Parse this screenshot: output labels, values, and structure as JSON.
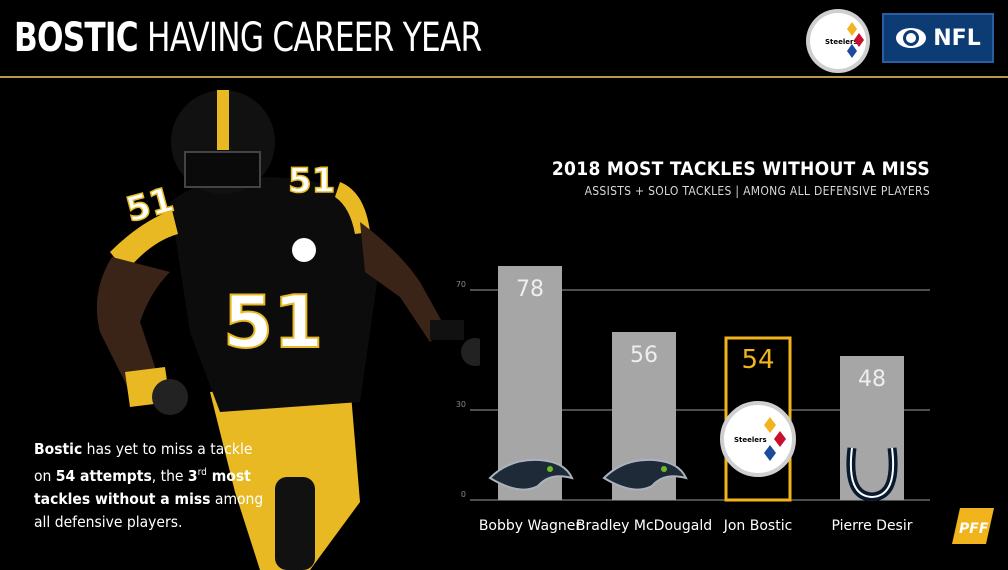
{
  "header": {
    "title_bold": "BOSTIC",
    "title_rest": " HAVING CAREER YEAR",
    "steelers_logo_text": "Steelers",
    "network_text": "NFL",
    "accent_color": "#b89a45"
  },
  "caption": {
    "part1": "Bostic",
    "part2": " has yet to miss a tackle on ",
    "part3": "54 attempts",
    "part4": ", the ",
    "part5": "3",
    "part6": "rd",
    "part7": " most tackles without a miss",
    "part8": " among all defensive players."
  },
  "chart_data": {
    "type": "bar",
    "title": "2018 MOST TACKLES WITHOUT A MISS",
    "subtitle": "ASSISTS + SOLO TACKLES | AMONG ALL DEFENSIVE PLAYERS",
    "categories": [
      "Bobby Wagner",
      "Bradley McDougald",
      "Jon Bostic",
      "Pierre Desir"
    ],
    "values": [
      78,
      56,
      54,
      48
    ],
    "value_labels": [
      "78",
      "56",
      "54",
      "48"
    ],
    "team_icons": [
      "seahawks-icon",
      "seahawks-icon",
      "steelers-icon",
      "colts-icon"
    ],
    "highlight_index": 2,
    "yticks": [
      0,
      30,
      70
    ],
    "ylim": [
      0,
      100
    ],
    "grid": true,
    "colors": {
      "bar": "#a6a6a6",
      "highlight_border": "#f2b41c",
      "highlight_fill": "#000000",
      "value_text": "#eeeeee"
    }
  },
  "player": {
    "jersey_number": "51"
  },
  "branding": {
    "pff": "PFF"
  }
}
